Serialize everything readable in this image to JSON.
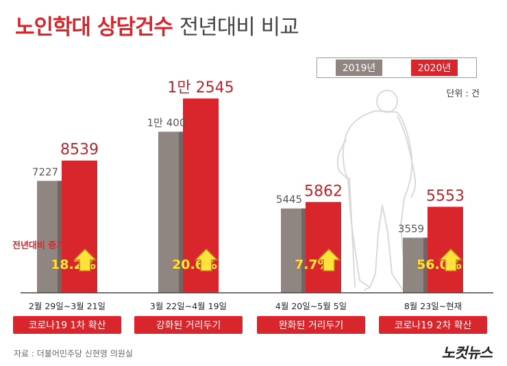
{
  "title": {
    "highlight": "노인학대 상담건수",
    "rest": "전년대비 비교"
  },
  "legend": {
    "items": [
      {
        "label": "2019년",
        "color": "#8f8682"
      },
      {
        "label": "2020년",
        "color": "#d8262c"
      }
    ]
  },
  "unit": "단위 : 건",
  "growth_caption": "전년대비 증가율",
  "source": "자료 : 더불어민주당 신현영 의원실",
  "logo": "노컷뉴스",
  "chart_data": {
    "type": "bar",
    "title": "노인학대 상담건수 전년대비 비교",
    "unit": "단위 : 건",
    "legend_position": "top-right",
    "categories": [
      "2월 29일~3월 21일",
      "3월 22일~4월 19일",
      "4월 20일~5월 5일",
      "8월 23일~현재"
    ],
    "category_labels": [
      "코로나19 1차 확산",
      "강화된 거리두기",
      "완화된 거리두기",
      "코로나19 2차 확산"
    ],
    "series": [
      {
        "name": "2019년",
        "values": [
          7227,
          10400,
          5445,
          3559
        ],
        "value_labels": [
          "7227",
          "1만 400",
          "5445",
          "3559"
        ],
        "color": "#8f8682"
      },
      {
        "name": "2020년",
        "values": [
          8539,
          12545,
          5862,
          5553
        ],
        "value_labels": [
          "8539",
          "1만 2545",
          "5862",
          "5553"
        ],
        "color": "#d8262c"
      }
    ],
    "growth_rates": [
      "18.2%",
      "20.6%",
      "7.7%",
      "56.0%"
    ],
    "ylim": [
      0,
      14000
    ],
    "grid": false
  }
}
